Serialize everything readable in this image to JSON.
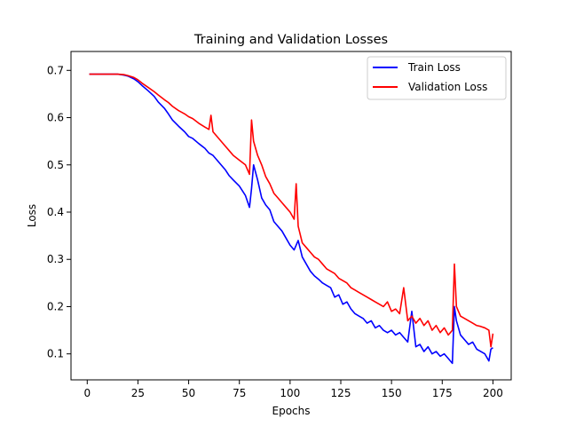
{
  "chart_data": {
    "type": "line",
    "title": "Training and Validation Losses",
    "xlabel": "Epochs",
    "ylabel": "Loss",
    "xlim": [
      -8,
      209
    ],
    "ylim": [
      0.045,
      0.74
    ],
    "xticks": [
      0,
      25,
      50,
      75,
      100,
      125,
      150,
      175,
      200
    ],
    "yticks": [
      0.1,
      0.2,
      0.3,
      0.4,
      0.5,
      0.6,
      0.7
    ],
    "grid": false,
    "legend_position": "top-right",
    "series": [
      {
        "name": "Train Loss",
        "color": "#0000ff",
        "x": [
          1,
          5,
          10,
          15,
          18,
          20,
          23,
          25,
          27,
          30,
          33,
          35,
          38,
          40,
          42,
          45,
          48,
          50,
          52,
          55,
          58,
          60,
          62,
          65,
          68,
          70,
          72,
          75,
          78,
          80,
          81,
          82,
          84,
          86,
          88,
          90,
          92,
          94,
          96,
          98,
          100,
          102,
          104,
          106,
          108,
          110,
          112,
          114,
          116,
          118,
          120,
          122,
          124,
          126,
          128,
          130,
          132,
          134,
          136,
          138,
          140,
          142,
          144,
          146,
          148,
          150,
          152,
          154,
          156,
          158,
          160,
          162,
          164,
          166,
          168,
          170,
          172,
          174,
          176,
          178,
          180,
          181,
          182,
          184,
          186,
          188,
          190,
          192,
          194,
          196,
          198,
          199,
          200
        ],
        "y": [
          0.692,
          0.692,
          0.692,
          0.692,
          0.69,
          0.688,
          0.682,
          0.676,
          0.668,
          0.657,
          0.645,
          0.633,
          0.62,
          0.608,
          0.595,
          0.582,
          0.57,
          0.56,
          0.556,
          0.545,
          0.535,
          0.525,
          0.52,
          0.505,
          0.49,
          0.477,
          0.468,
          0.455,
          0.435,
          0.41,
          0.45,
          0.5,
          0.468,
          0.43,
          0.415,
          0.405,
          0.38,
          0.37,
          0.36,
          0.345,
          0.33,
          0.32,
          0.34,
          0.305,
          0.29,
          0.275,
          0.265,
          0.258,
          0.25,
          0.245,
          0.24,
          0.22,
          0.225,
          0.205,
          0.21,
          0.195,
          0.185,
          0.18,
          0.175,
          0.165,
          0.17,
          0.155,
          0.16,
          0.15,
          0.145,
          0.15,
          0.14,
          0.145,
          0.135,
          0.125,
          0.19,
          0.115,
          0.12,
          0.105,
          0.115,
          0.1,
          0.105,
          0.095,
          0.1,
          0.09,
          0.08,
          0.2,
          0.17,
          0.14,
          0.13,
          0.12,
          0.125,
          0.11,
          0.105,
          0.1,
          0.085,
          0.11,
          0.113
        ]
      },
      {
        "name": "Validation Loss",
        "color": "#ff0000",
        "x": [
          1,
          5,
          10,
          15,
          18,
          20,
          23,
          25,
          27,
          30,
          33,
          35,
          38,
          40,
          42,
          45,
          48,
          50,
          52,
          55,
          58,
          60,
          61,
          62,
          65,
          68,
          70,
          72,
          75,
          78,
          80,
          81,
          82,
          84,
          86,
          88,
          90,
          92,
          94,
          96,
          98,
          100,
          102,
          103,
          104,
          106,
          108,
          110,
          112,
          114,
          116,
          118,
          120,
          122,
          124,
          126,
          128,
          130,
          132,
          134,
          136,
          138,
          140,
          142,
          144,
          146,
          148,
          150,
          152,
          154,
          156,
          158,
          160,
          162,
          164,
          166,
          168,
          170,
          172,
          174,
          176,
          178,
          180,
          181,
          182,
          184,
          186,
          188,
          190,
          192,
          194,
          196,
          198,
          199,
          200
        ],
        "y": [
          0.692,
          0.692,
          0.692,
          0.692,
          0.691,
          0.689,
          0.685,
          0.68,
          0.673,
          0.664,
          0.655,
          0.648,
          0.638,
          0.632,
          0.624,
          0.615,
          0.608,
          0.602,
          0.598,
          0.588,
          0.58,
          0.575,
          0.605,
          0.57,
          0.555,
          0.54,
          0.53,
          0.52,
          0.51,
          0.5,
          0.48,
          0.595,
          0.55,
          0.52,
          0.5,
          0.475,
          0.46,
          0.44,
          0.43,
          0.42,
          0.41,
          0.4,
          0.385,
          0.46,
          0.37,
          0.335,
          0.325,
          0.315,
          0.305,
          0.3,
          0.29,
          0.28,
          0.275,
          0.27,
          0.26,
          0.255,
          0.25,
          0.24,
          0.235,
          0.23,
          0.225,
          0.22,
          0.215,
          0.21,
          0.205,
          0.2,
          0.21,
          0.19,
          0.195,
          0.185,
          0.24,
          0.17,
          0.18,
          0.165,
          0.175,
          0.16,
          0.17,
          0.15,
          0.16,
          0.145,
          0.155,
          0.14,
          0.15,
          0.29,
          0.2,
          0.18,
          0.175,
          0.17,
          0.165,
          0.16,
          0.158,
          0.155,
          0.15,
          0.115,
          0.143
        ]
      }
    ]
  }
}
